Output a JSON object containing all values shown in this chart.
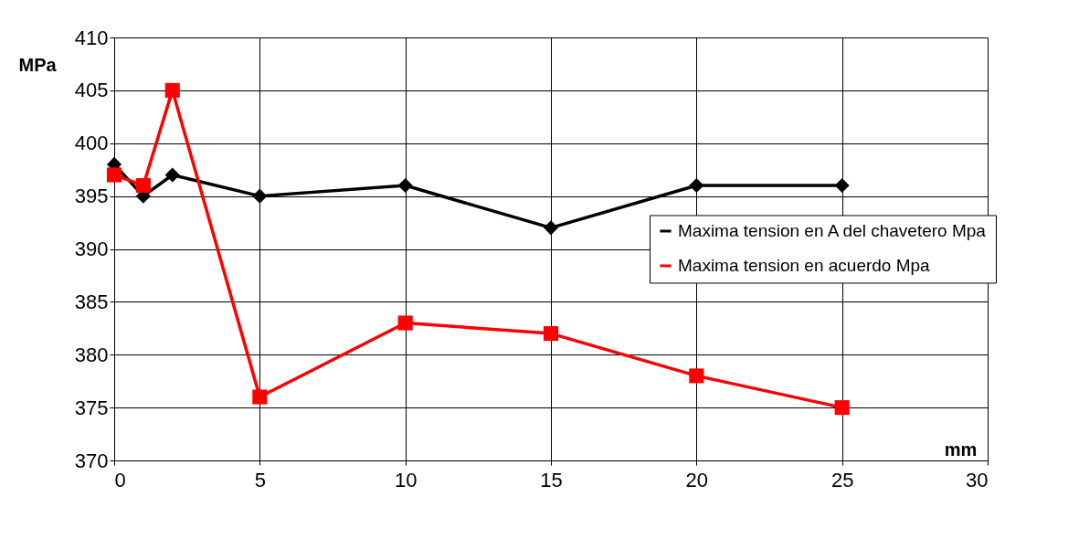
{
  "chart_data": {
    "type": "line",
    "xlabel": "mm",
    "ylabel": "MPa",
    "x": [
      0,
      1,
      2,
      5,
      10,
      15,
      20,
      25
    ],
    "series": [
      {
        "name": "Maxima tension en A del chavetero Mpa",
        "color": "#000000",
        "marker": "diamond",
        "values": [
          398,
          395,
          397,
          395,
          396,
          392,
          396,
          396
        ]
      },
      {
        "name": "Maxima tension en acuerdo Mpa",
        "color": "#ff0000",
        "marker": "square",
        "values": [
          397,
          396,
          405,
          376,
          383,
          382,
          378,
          375
        ]
      }
    ],
    "xlim": [
      0,
      30
    ],
    "xticks": [
      0,
      5,
      10,
      15,
      20,
      25,
      30
    ],
    "ylim": [
      370,
      410
    ],
    "yticks": [
      370,
      375,
      380,
      385,
      390,
      395,
      400,
      405,
      410
    ],
    "grid": true,
    "legend": "right",
    "line_style": "solid"
  }
}
